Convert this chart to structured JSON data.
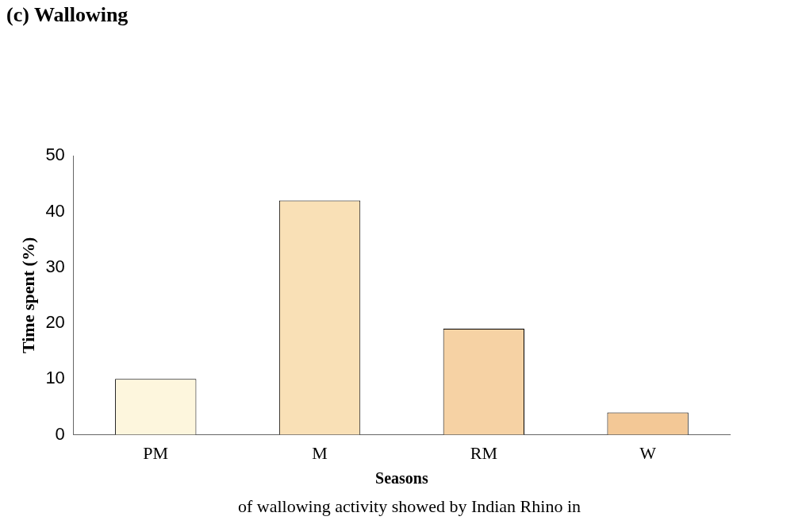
{
  "chart_data": {
    "type": "bar",
    "title": "(c) Wallowing",
    "xlabel": "Seasons",
    "ylabel": "Time spent (%)",
    "categories": [
      "PM",
      "M",
      "RM",
      "W"
    ],
    "values": [
      10,
      42,
      19,
      4
    ],
    "colors": [
      "#fdf6dd",
      "#f9e0b6",
      "#f6d2a4",
      "#f3c896"
    ],
    "ylim": [
      0,
      50
    ],
    "yticks": [
      0,
      10,
      20,
      30,
      40,
      50
    ],
    "grid": false,
    "legend": false,
    "annotations": [
      "of wallowing activity showed by Indian Rhino in"
    ]
  }
}
